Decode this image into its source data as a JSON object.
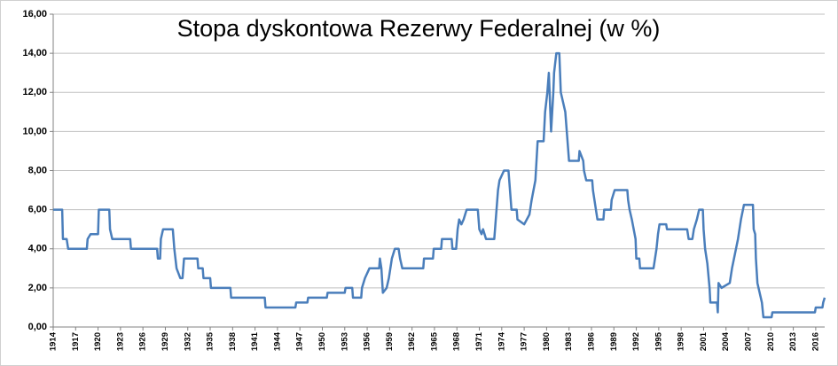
{
  "chart_data": {
    "type": "line",
    "title": "Stopa dyskontowa Rezerwy Federalnej (w %)",
    "color": "#4a7ebb",
    "grid": true,
    "xlim": [
      1914,
      2017.2
    ],
    "xticks": [
      1914,
      1917,
      1920,
      1923,
      1926,
      1929,
      1932,
      1935,
      1938,
      1941,
      1944,
      1947,
      1950,
      1953,
      1956,
      1959,
      1962,
      1965,
      1968,
      1971,
      1974,
      1977,
      1980,
      1983,
      1986,
      1989,
      1992,
      1995,
      1998,
      2001,
      2004,
      2007,
      2010,
      2013,
      2016
    ],
    "ylim": [
      0,
      16
    ],
    "yticks": [
      {
        "value": 0,
        "label": "0,00"
      },
      {
        "value": 2,
        "label": "2,00"
      },
      {
        "value": 4,
        "label": "4,00"
      },
      {
        "value": 6,
        "label": "6,00"
      },
      {
        "value": 8,
        "label": "8,00"
      },
      {
        "value": 10,
        "label": "10,00"
      },
      {
        "value": 12,
        "label": "12,00"
      },
      {
        "value": 14,
        "label": "14,00"
      },
      {
        "value": 16,
        "label": "16,00"
      }
    ],
    "x": [
      1914,
      1915.2,
      1915.3,
      1915.8,
      1916,
      1918.5,
      1918.6,
      1919,
      1920,
      1920.1,
      1921.5,
      1921.6,
      1921.9,
      1924.3,
      1924.4,
      1927.9,
      1928,
      1928.3,
      1928.4,
      1928.7,
      1930,
      1930.2,
      1930.5,
      1931,
      1931.3,
      1931.5,
      1933.3,
      1933.4,
      1934,
      1934.1,
      1935,
      1935.1,
      1937.7,
      1937.8,
      1942.3,
      1942.4,
      1946.4,
      1946.5,
      1948,
      1948.1,
      1950.6,
      1950.7,
      1953,
      1953.1,
      1954,
      1954.1,
      1955.2,
      1955.3,
      1955.7,
      1956.3,
      1957.6,
      1957.7,
      1957.9,
      1958.1,
      1958.6,
      1958.9,
      1959.3,
      1959.7,
      1960.2,
      1960.4,
      1960.7,
      1963.5,
      1963.6,
      1964.8,
      1964.9,
      1965.9,
      1966,
      1967.3,
      1967.4,
      1967.9,
      1968.1,
      1968.3,
      1968.6,
      1968.9,
      1969.3,
      1970.8,
      1971,
      1971.3,
      1971.5,
      1971.9,
      1973,
      1973.2,
      1973.5,
      1973.7,
      1974.3,
      1974.9,
      1975.1,
      1975.3,
      1976,
      1976.1,
      1977,
      1977.7,
      1978,
      1978.5,
      1978.8,
      1979.6,
      1979.8,
      1980.1,
      1980.3,
      1980.5,
      1980.6,
      1980.9,
      1981,
      1981.3,
      1981.7,
      1981.8,
      1981.9,
      1982.5,
      1982.8,
      1983,
      1984.3,
      1984.4,
      1984.9,
      1985,
      1985.3,
      1986.1,
      1986.2,
      1986.6,
      1986.8,
      1987.6,
      1987.7,
      1988.6,
      1988.7,
      1989.1,
      1990.8,
      1990.9,
      1991.1,
      1991.4,
      1991.9,
      1992,
      1992.4,
      1992.5,
      1994.3,
      1994.5,
      1994.7,
      1994.9,
      1995.1,
      1996,
      1996.1,
      1998.8,
      1998.9,
      1999,
      1999.5,
      1999.7,
      2000.1,
      2000.4,
      2000.9,
      2001,
      2001.2,
      2001.5,
      2001.8,
      2001.9,
      2002.8,
      2002.9,
      2003,
      2003.4,
      2004.5,
      2004.8,
      2005.2,
      2005.6,
      2006,
      2006.4,
      2007.6,
      2007.7,
      2007.9,
      2008,
      2008.2,
      2008.8,
      2009,
      2010.1,
      2010.2,
      2015.9,
      2016,
      2016.9,
      2017,
      2017.2
    ],
    "values": [
      6,
      6,
      4.5,
      4.5,
      4,
      4,
      4.5,
      4.75,
      4.75,
      6,
      6,
      5,
      4.5,
      4.5,
      4,
      4,
      3.5,
      3.5,
      4.5,
      5,
      5,
      4,
      3,
      2.5,
      2.5,
      3.5,
      3.5,
      3,
      3,
      2.5,
      2.5,
      2,
      2,
      1.5,
      1.5,
      1,
      1,
      1.25,
      1.25,
      1.5,
      1.5,
      1.75,
      1.75,
      2,
      2,
      1.5,
      1.5,
      2,
      2.5,
      3,
      3,
      3.5,
      3,
      1.75,
      2,
      2.5,
      3.5,
      4,
      4,
      3.5,
      3,
      3,
      3.5,
      3.5,
      4,
      4,
      4.5,
      4.5,
      4,
      4,
      5,
      5.5,
      5.25,
      5.5,
      6,
      6,
      5,
      4.75,
      5,
      4.5,
      4.5,
      5.5,
      7,
      7.5,
      8,
      8,
      7,
      6,
      6,
      5.5,
      5.25,
      5.75,
      6.5,
      7.5,
      9.5,
      9.5,
      11,
      12,
      13,
      11,
      10,
      12,
      13,
      14,
      14,
      13,
      12,
      11,
      9.5,
      8.5,
      8.5,
      9,
      8.5,
      8,
      7.5,
      7.5,
      7,
      6,
      5.5,
      5.5,
      6,
      6,
      6.5,
      7,
      7,
      6.5,
      6,
      5.5,
      4.5,
      3.5,
      3.5,
      3,
      3,
      3.5,
      4,
      4.75,
      5.25,
      5.25,
      5,
      5,
      4.75,
      4.5,
      4.5,
      5,
      5.5,
      6,
      6,
      5,
      4,
      3.25,
      2,
      1.25,
      1.25,
      0.75,
      2.25,
      2,
      2.25,
      3,
      3.75,
      4.5,
      5.5,
      6.25,
      6.25,
      5,
      4.75,
      3.5,
      2.25,
      1.25,
      0.5,
      0.5,
      0.75,
      0.75,
      1,
      1,
      1.25,
      1.5
    ]
  }
}
